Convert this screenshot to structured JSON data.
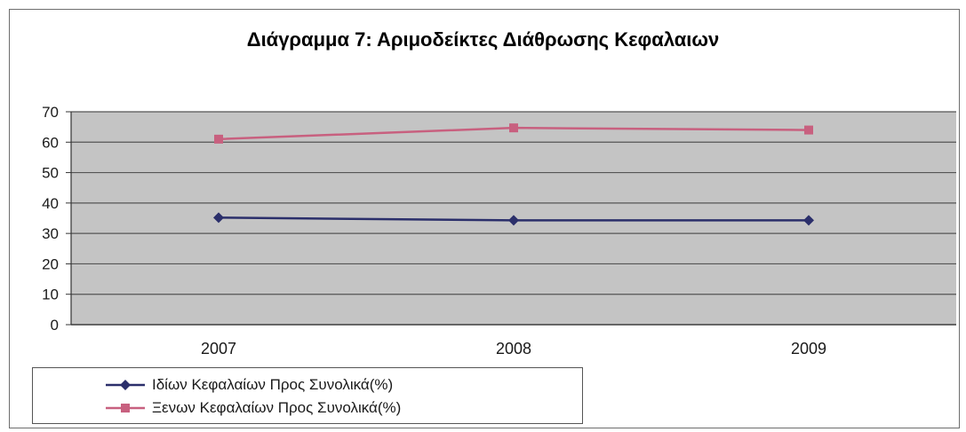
{
  "chart_data": {
    "type": "line",
    "title": "Διάγραμμα 7: Αριμοδείκτες Διάθρωσης Κεφαλαιων",
    "categories": [
      "2007",
      "2008",
      "2009"
    ],
    "ylim": [
      0,
      70
    ],
    "yticks": [
      0,
      10,
      20,
      30,
      40,
      50,
      60,
      70
    ],
    "grid": true,
    "legend_position": "bottom-left",
    "series": [
      {
        "name": "Ιδίων Κεφαλαίων Προς Συνολικά(%)",
        "values": [
          35.2,
          34.3,
          34.3
        ],
        "color": "#2b2f6b",
        "marker": "diamond"
      },
      {
        "name": "Ξενων Κεφαλαίων Προς Συνολικά(%)",
        "values": [
          61.0,
          64.7,
          64.0
        ],
        "color": "#c8607f",
        "marker": "square"
      }
    ]
  },
  "colors": {
    "plot_background": "#c4c4c4",
    "gridline": "#555555"
  }
}
